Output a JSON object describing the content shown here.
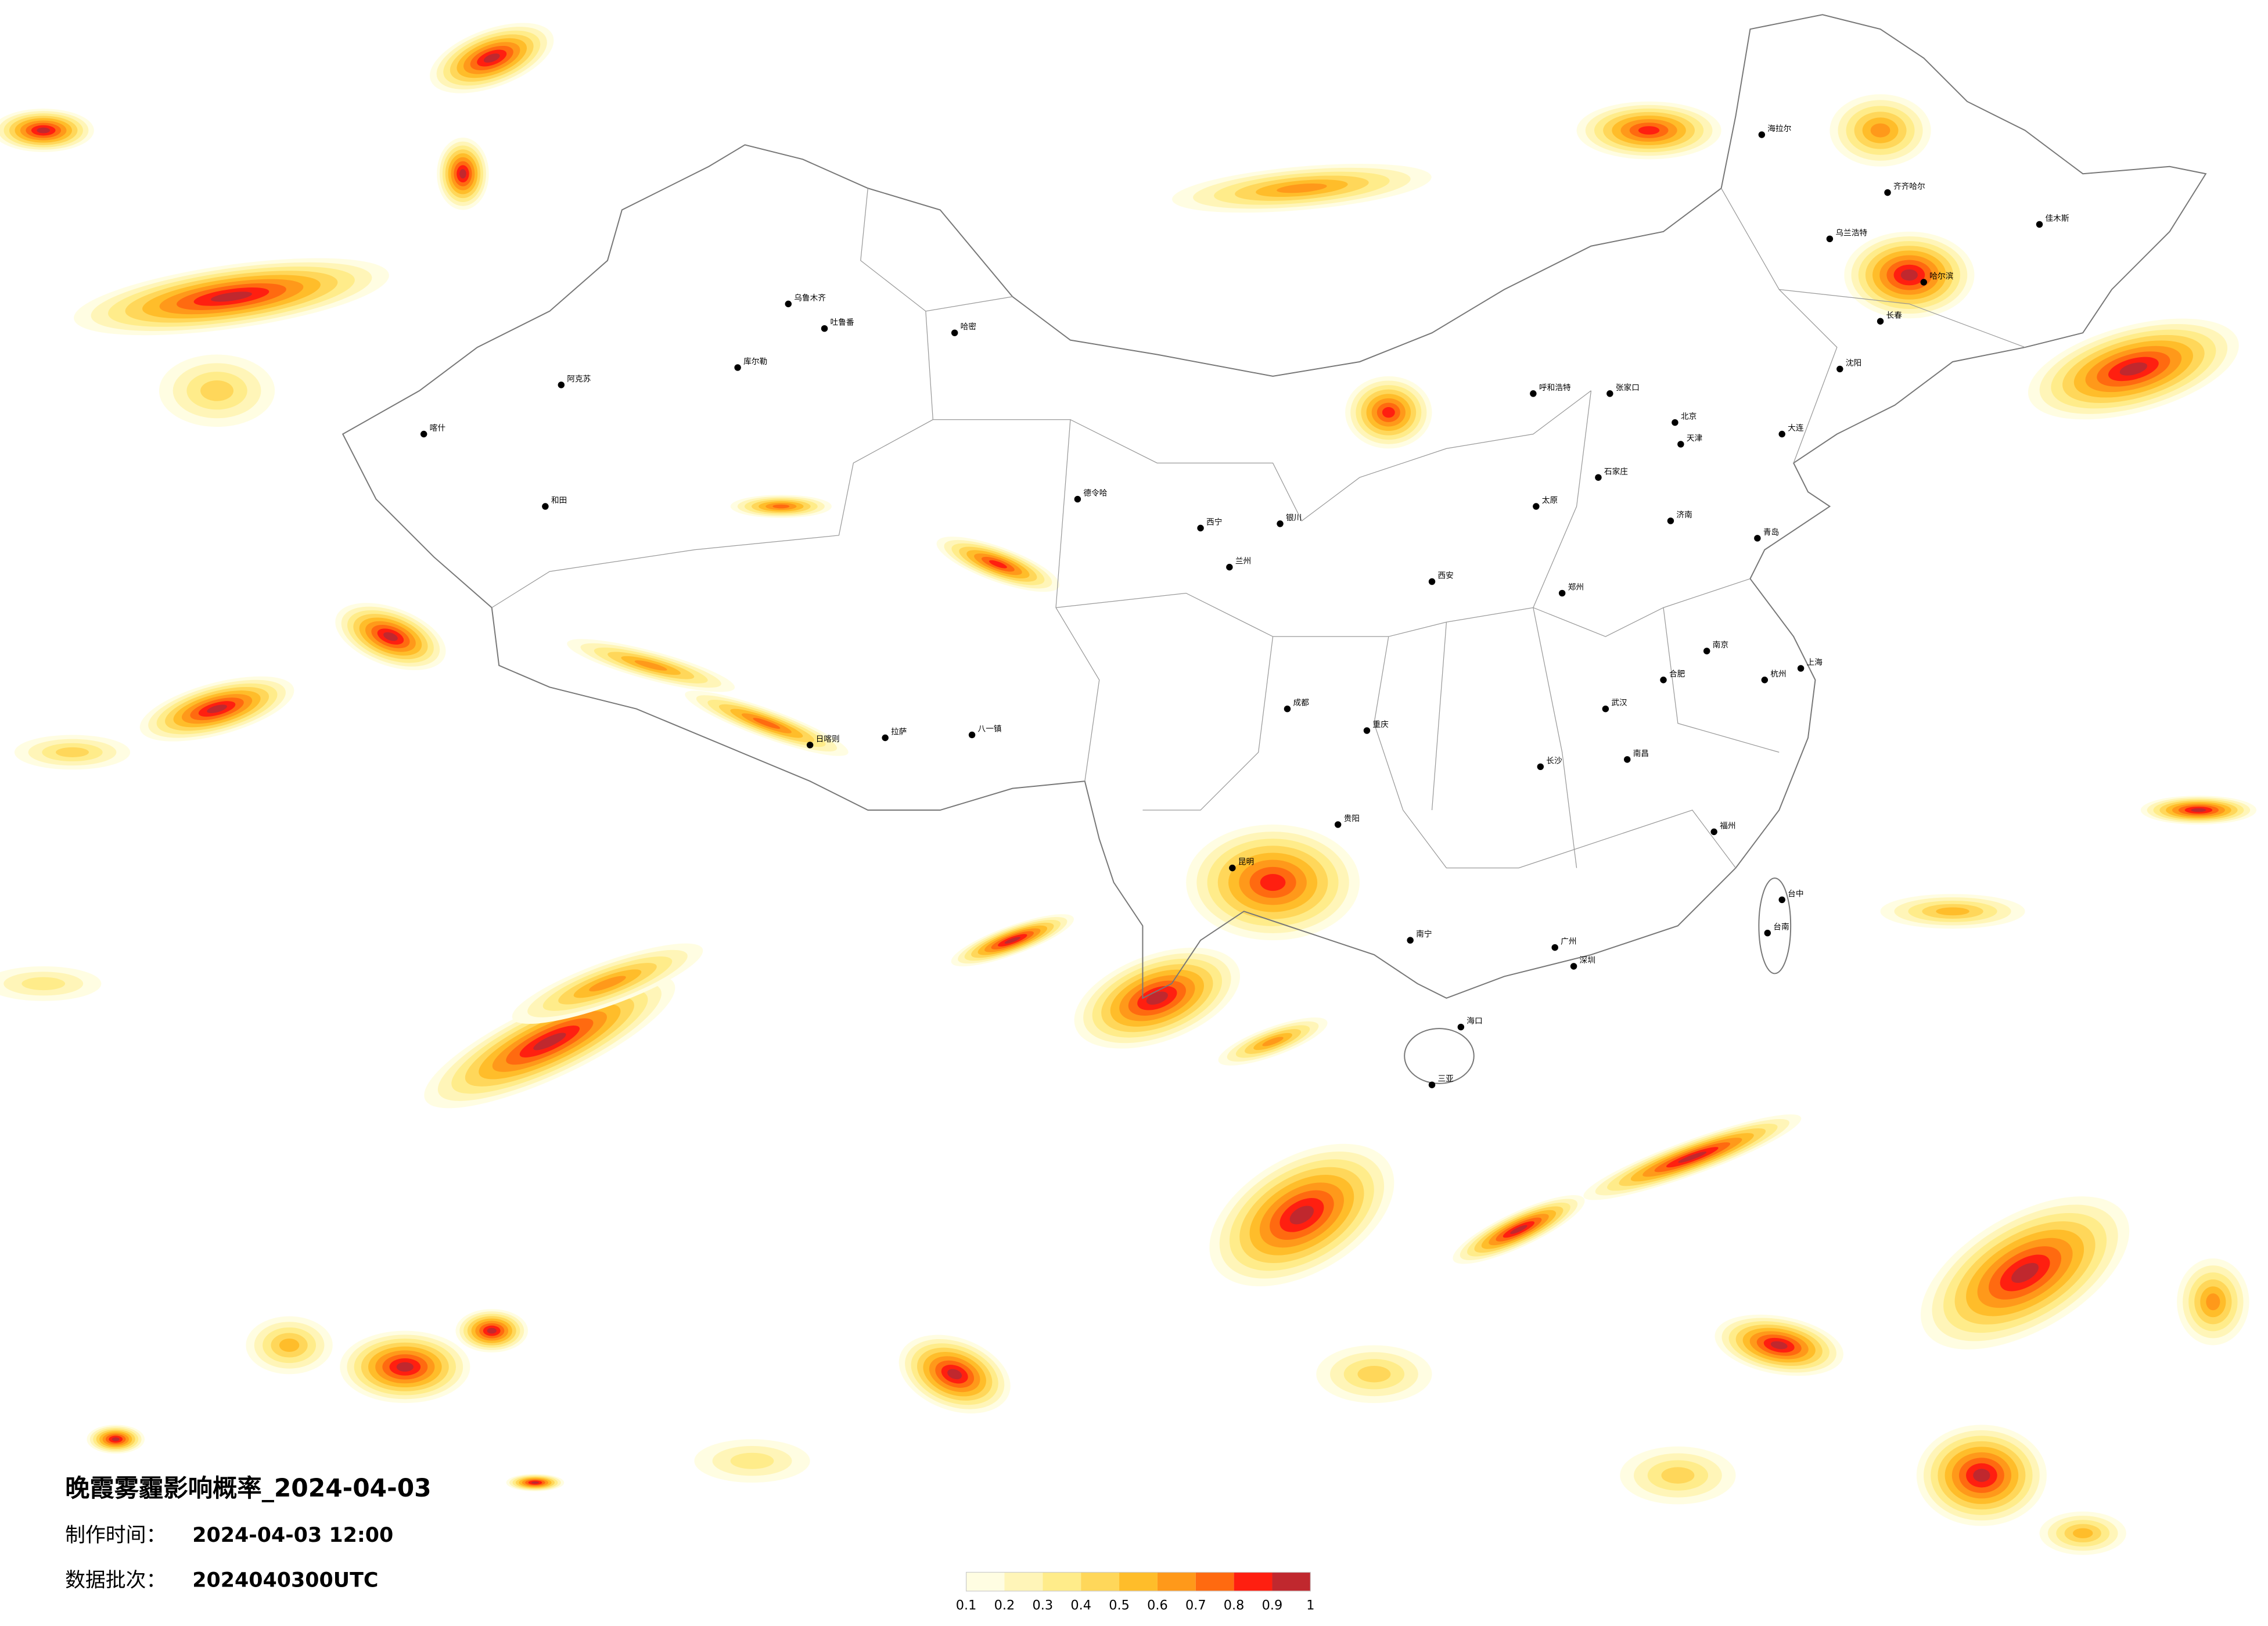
{
  "header": {
    "title": "晚霞雾霾影响概率_2024-04-03",
    "made_label": "制作时间：",
    "made_value": "2024-04-03 12:00",
    "batch_label": "数据批次：",
    "batch_value": "2024040300UTC"
  },
  "legend": {
    "clim": [
      0.1,
      1
    ],
    "ticks": [
      0.1,
      0.2,
      0.3,
      0.4,
      0.5,
      0.6,
      0.7,
      0.8,
      0.9,
      1
    ],
    "colors": [
      "#fffde2",
      "#fff5b8",
      "#ffec8a",
      "#ffd75a",
      "#ffbd2a",
      "#ff991a",
      "#ff6a10",
      "#ff1f10",
      "#c0282e"
    ]
  },
  "cities": [
    "喀什",
    "和田",
    "阿克苏",
    "库尔勒",
    "乌鲁木齐",
    "吐鲁番",
    "哈密",
    "日喀则",
    "拉萨",
    "八一镇",
    "德令哈",
    "西宁",
    "兰州",
    "银川",
    "呼和浩特",
    "张家口",
    "北京",
    "天津",
    "石家庄",
    "太原",
    "济南",
    "青岛",
    "郑州",
    "西安",
    "成都",
    "重庆",
    "贵阳",
    "昆明",
    "南宁",
    "广州",
    "深圳",
    "海口",
    "三亚",
    "长沙",
    "南昌",
    "武汉",
    "合肥",
    "南京",
    "杭州",
    "上海",
    "福州",
    "台中",
    "台南",
    "沈阳",
    "大连",
    "长春",
    "哈尔滨",
    "齐齐哈尔",
    "海拉尔",
    "佳木斯",
    "乌兰浩特"
  ]
}
